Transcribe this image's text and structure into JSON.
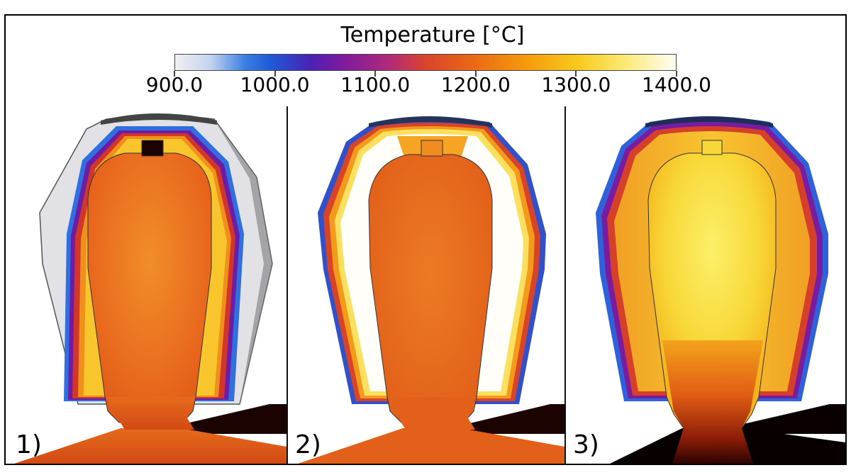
{
  "colorbar": {
    "title": "Temperature [°C]",
    "min": 900.0,
    "max": 1400.0,
    "ticks": [
      "900.0",
      "1000.0",
      "1100.0",
      "1200.0",
      "1300.0",
      "1400.0"
    ]
  },
  "panels": [
    {
      "label": "1)",
      "description": "cool outer shell"
    },
    {
      "label": "2)",
      "description": "hot band inside shell"
    },
    {
      "label": "3)",
      "description": "uniformly hot interior"
    }
  ]
}
